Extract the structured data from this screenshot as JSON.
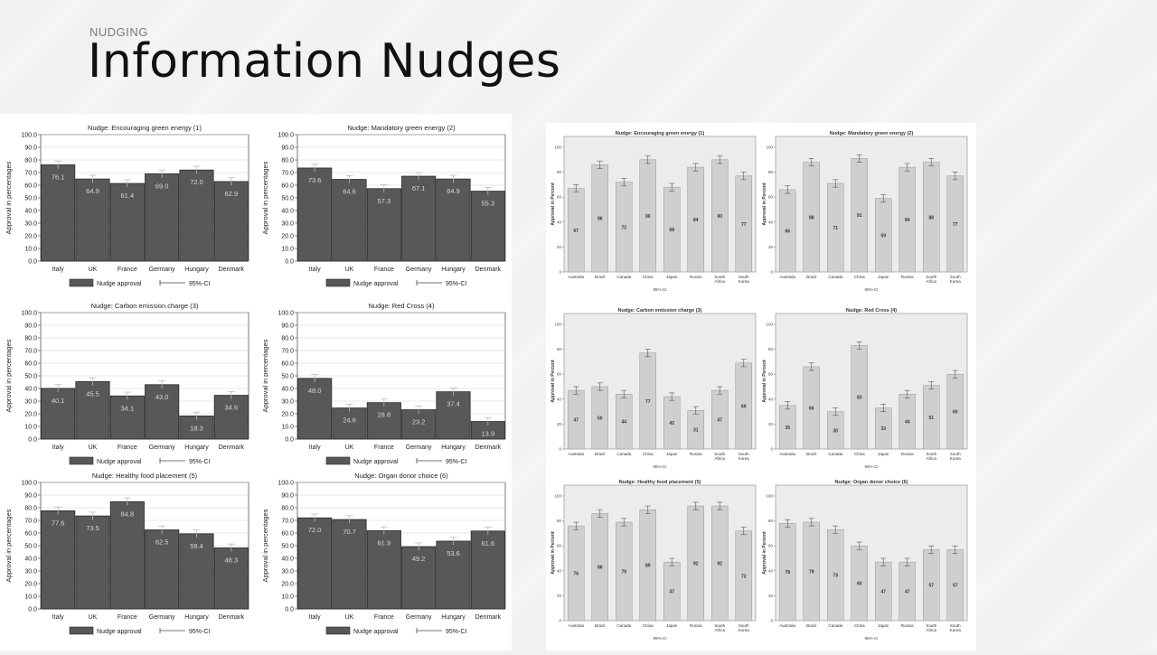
{
  "slide": {
    "section": "NUDGING",
    "title": "Information Nudges"
  },
  "left_panel": {
    "ylabel": "Approval in percentages",
    "categories": [
      "Italy",
      "UK",
      "France",
      "Germany",
      "Hungary",
      "Denmark"
    ],
    "yticks": [
      "0.0",
      "10.0",
      "20.0",
      "30.0",
      "40.0",
      "50.0",
      "60.0",
      "70.0",
      "80.0",
      "90.0",
      "100.0"
    ],
    "legend_bar": "Nudge approval",
    "legend_ci": "95%-CI"
  },
  "right_panel": {
    "ylabel": "Approval in Percent",
    "categories": [
      "Australia",
      "Brazil",
      "Canada",
      "China",
      "Japan",
      "Russia",
      "South Africa",
      "South Korea"
    ],
    "xlabel": "95%-CI"
  },
  "chart_data": [
    {
      "type": "bar",
      "title": "Nudge: Encouraging green energy (1)",
      "categories": [
        "Italy",
        "UK",
        "France",
        "Germany",
        "Hungary",
        "Denmark"
      ],
      "values": [
        76.1,
        64.9,
        61.4,
        69.0,
        72.0,
        62.9
      ],
      "ylabel": "Approval in percentages",
      "ylim": [
        0,
        100
      ]
    },
    {
      "type": "bar",
      "title": "Nudge: Mandatory green energy (2)",
      "categories": [
        "Italy",
        "UK",
        "France",
        "Germany",
        "Hungary",
        "Denmark"
      ],
      "values": [
        73.6,
        64.6,
        57.3,
        67.1,
        64.9,
        55.3
      ],
      "ylabel": "Approval in percentages",
      "ylim": [
        0,
        100
      ]
    },
    {
      "type": "bar",
      "title": "Nudge: Carbon emission charge (3)",
      "categories": [
        "Italy",
        "UK",
        "France",
        "Germany",
        "Hungary",
        "Denmark"
      ],
      "values": [
        40.1,
        45.5,
        34.1,
        43.0,
        18.3,
        34.6
      ],
      "ylabel": "Approval in percentages",
      "ylim": [
        0,
        100
      ]
    },
    {
      "type": "bar",
      "title": "Nudge: Red Cross (4)",
      "categories": [
        "Italy",
        "UK",
        "France",
        "Germany",
        "Hungary",
        "Denmark"
      ],
      "values": [
        48.0,
        24.6,
        28.8,
        23.2,
        37.4,
        13.9
      ],
      "ylabel": "Approval in percentages",
      "ylim": [
        0,
        100
      ]
    },
    {
      "type": "bar",
      "title": "Nudge: Healthy food placement (5)",
      "categories": [
        "Italy",
        "UK",
        "France",
        "Germany",
        "Hungary",
        "Denmark"
      ],
      "values": [
        77.6,
        73.5,
        84.8,
        62.5,
        59.4,
        48.3
      ],
      "ylabel": "Approval in percentages",
      "ylim": [
        0,
        100
      ]
    },
    {
      "type": "bar",
      "title": "Nudge: Organ donor choice (6)",
      "categories": [
        "Italy",
        "UK",
        "France",
        "Germany",
        "Hungary",
        "Denmark"
      ],
      "values": [
        72.0,
        70.7,
        61.9,
        49.2,
        53.6,
        61.6
      ],
      "ylabel": "Approval in percentages",
      "ylim": [
        0,
        100
      ]
    },
    {
      "type": "bar",
      "title": "Nudge: Encouraging green energy (1)",
      "categories": [
        "Australia",
        "Brazil",
        "Canada",
        "China",
        "Japan",
        "Russia",
        "South Africa",
        "South Korea"
      ],
      "values": [
        67,
        86,
        72,
        90,
        68,
        84,
        90,
        77
      ],
      "ylabel": "Approval in Percent",
      "xlabel": "95%-CI",
      "ylim": [
        0,
        100
      ]
    },
    {
      "type": "bar",
      "title": "Nudge: Mandatory green energy (2)",
      "categories": [
        "Australia",
        "Brazil",
        "Canada",
        "China",
        "Japan",
        "Russia",
        "South Africa",
        "South Korea"
      ],
      "values": [
        66,
        88,
        71,
        91,
        59,
        84,
        88,
        77
      ],
      "ylabel": "Approval in Percent",
      "xlabel": "95%-CI",
      "ylim": [
        0,
        100
      ]
    },
    {
      "type": "bar",
      "title": "Nudge: Carbon emission charge (3)",
      "categories": [
        "Australia",
        "Brazil",
        "Canada",
        "China",
        "Japan",
        "Russia",
        "South Africa",
        "South Korea"
      ],
      "values": [
        47,
        50,
        44,
        77,
        42,
        31,
        47,
        69
      ],
      "ylabel": "Approval in Percent",
      "xlabel": "95%-CI",
      "ylim": [
        0,
        100
      ]
    },
    {
      "type": "bar",
      "title": "Nudge: Red Cross (4)",
      "categories": [
        "Australia",
        "Brazil",
        "Canada",
        "China",
        "Japan",
        "Russia",
        "South Africa",
        "South Korea"
      ],
      "values": [
        35,
        66,
        30,
        83,
        33,
        44,
        51,
        60
      ],
      "ylabel": "Approval in Percent",
      "xlabel": "95%-CI",
      "ylim": [
        0,
        100
      ]
    },
    {
      "type": "bar",
      "title": "Nudge: Healthy food placement (5)",
      "categories": [
        "Australia",
        "Brazil",
        "Canada",
        "China",
        "Japan",
        "Russia",
        "South Africa",
        "South Korea"
      ],
      "values": [
        76,
        86,
        79,
        89,
        47,
        92,
        92,
        72
      ],
      "ylabel": "Approval in Percent",
      "xlabel": "95%-CI",
      "ylim": [
        0,
        100
      ]
    },
    {
      "type": "bar",
      "title": "Nudge: Organ donor choice (6)",
      "categories": [
        "Australia",
        "Brazil",
        "Canada",
        "China",
        "Japan",
        "Russia",
        "South Africa",
        "South Korea"
      ],
      "values": [
        78,
        79,
        73,
        60,
        47,
        47,
        57,
        57
      ],
      "ylabel": "Approval in Percent",
      "xlabel": "95%-CI",
      "ylim": [
        0,
        100
      ]
    }
  ]
}
